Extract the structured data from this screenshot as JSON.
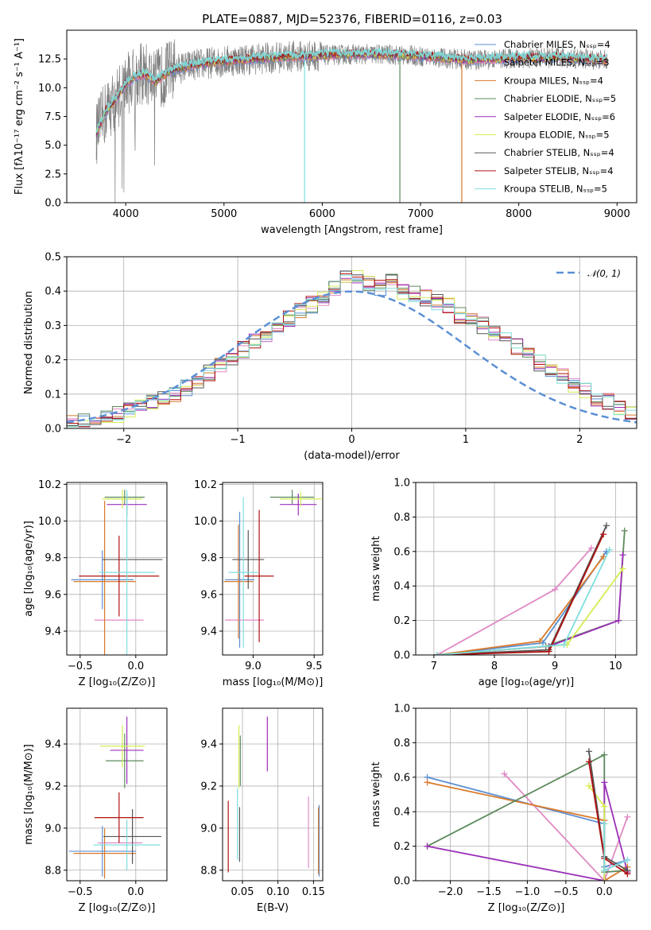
{
  "figure": {
    "title": "PLATE=0887, MJD=52376, FIBERID=0116, z=0.03"
  },
  "colors": [
    "#5b8fd4",
    "#e08ac4",
    "#d97a2a",
    "#5c8a5c",
    "#9b30b8",
    "#d4ec50",
    "#555555",
    "#b01010",
    "#7fdede"
  ],
  "chart_data": [
    {
      "type": "line",
      "panel": "spectrum",
      "xlabel": "wavelength [Angstrom, rest frame]",
      "ylabel": "Flux [fλ10⁻¹⁷ erg cm⁻² s⁻¹ A⁻¹]",
      "xlim": [
        3400,
        9200
      ],
      "ylim": [
        0,
        15
      ],
      "xticks": [
        "4000",
        "5000",
        "6000",
        "7000",
        "8000",
        "9000"
      ],
      "yticks": [
        "0.0",
        "2.5",
        "5.0",
        "7.5",
        "10.0",
        "12.5"
      ],
      "grid": false,
      "legend": "top-right",
      "legend_entries": [
        "Chabrier MILES, Nₛₛₚ=4",
        "Salpeter MILES, Nₛₛₚ=3",
        "Kroupa MILES, Nₛₛₚ=4",
        "Chabrier ELODIE, Nₛₛₚ=5",
        "Salpeter ELODIE, Nₛₛₚ=6",
        "Kroupa ELODIE, Nₛₛₚ=5",
        "Chabrier STELIB, Nₛₛₚ=4",
        "Salpeter STELIB, Nₛₛₚ=4",
        "Kroupa STELIB, Nₛₛₚ=5"
      ],
      "observed_envelope": {
        "x": [
          3700,
          3800,
          3900,
          4000,
          4100,
          4200,
          4300,
          4400,
          4500,
          4700,
          4900,
          5100,
          5300,
          5500,
          5700,
          6000,
          6300,
          6600,
          6900,
          7200,
          7500,
          7800,
          8100,
          8400,
          8700,
          8900
        ],
        "y": [
          6.0,
          8.0,
          9.0,
          10.3,
          11.0,
          11.2,
          10.5,
          11.2,
          11.6,
          12.0,
          12.2,
          12.4,
          12.5,
          12.6,
          12.7,
          12.8,
          12.9,
          12.9,
          12.8,
          12.6,
          12.4,
          12.5,
          12.6,
          12.6,
          12.5,
          12.4
        ]
      },
      "model_spikes": [
        {
          "x": 5820,
          "y": 0
        },
        {
          "x": 6790,
          "y": 0
        },
        {
          "x": 7420,
          "y": 0
        }
      ]
    },
    {
      "type": "step",
      "panel": "residual-histogram",
      "xlabel": "(data-model)/error",
      "ylabel": "Normed distribution",
      "xlim": [
        -2.5,
        2.5
      ],
      "ylim": [
        0,
        0.5
      ],
      "xticks": [
        "−2",
        "−1",
        "0",
        "1",
        "2"
      ],
      "yticks": [
        "0.0",
        "0.1",
        "0.2",
        "0.3",
        "0.4",
        "0.5"
      ],
      "grid": true,
      "legend": "top-right",
      "legend_entries": [
        "𝒩(0, 1)"
      ],
      "bin_width": 0.1,
      "bins_start": -2.5,
      "reference_curve": "normal(0,1)",
      "histogram_envelope": [
        0.02,
        0.02,
        0.03,
        0.03,
        0.04,
        0.05,
        0.06,
        0.08,
        0.09,
        0.1,
        0.12,
        0.14,
        0.16,
        0.18,
        0.2,
        0.23,
        0.25,
        0.27,
        0.29,
        0.32,
        0.34,
        0.36,
        0.38,
        0.41,
        0.45,
        0.44,
        0.42,
        0.41,
        0.43,
        0.4,
        0.39,
        0.38,
        0.37,
        0.36,
        0.33,
        0.32,
        0.3,
        0.28,
        0.26,
        0.24,
        0.21,
        0.19,
        0.17,
        0.15,
        0.13,
        0.11,
        0.09,
        0.08,
        0.06,
        0.05,
        0.04,
        0.03,
        0.03
      ]
    },
    {
      "type": "scatter",
      "panel": "age-vs-Z",
      "xlabel": "Z [log₁₀(Z/Z⊙)]",
      "ylabel": "age  [log₁₀(age/yr)]",
      "xlim": [
        -0.62,
        0.28
      ],
      "ylim": [
        9.27,
        10.21
      ],
      "xticks": [
        "−0.5",
        "0.0"
      ],
      "yticks": [
        "9.4",
        "9.6",
        "9.8",
        "10.0",
        "10.2"
      ],
      "grid": true,
      "points": [
        {
          "x": -0.3,
          "y": 9.68,
          "xerr": 0.28,
          "yerr": 0.16,
          "c": 0
        },
        {
          "x": -0.15,
          "y": 9.46,
          "xerr": 0.22,
          "yerr": 0.0,
          "c": 1
        },
        {
          "x": -0.28,
          "y": 9.67,
          "xerr": 0.28,
          "yerr": 0.44,
          "c": 2
        },
        {
          "x": -0.1,
          "y": 10.13,
          "xerr": 0.18,
          "yerr": 0.04,
          "c": 3
        },
        {
          "x": -0.08,
          "y": 10.09,
          "xerr": 0.18,
          "yerr": 0.06,
          "c": 4
        },
        {
          "x": -0.12,
          "y": 10.12,
          "xerr": 0.18,
          "yerr": 0.05,
          "c": 5
        },
        {
          "x": -0.03,
          "y": 9.79,
          "xerr": 0.27,
          "yerr": 0.0,
          "c": 6
        },
        {
          "x": -0.15,
          "y": 9.7,
          "xerr": 0.36,
          "yerr": 0.22,
          "c": 7
        },
        {
          "x": -0.08,
          "y": 9.72,
          "xerr": 0.25,
          "yerr": 0.45,
          "c": 8
        }
      ]
    },
    {
      "type": "scatter",
      "panel": "age-vs-mass",
      "xlabel": "mass [log₁₀(M/M⊙)]",
      "ylabel": "",
      "xlim": [
        8.75,
        9.57
      ],
      "ylim": [
        9.27,
        10.21
      ],
      "xticks": [
        "9.0",
        "9.5"
      ],
      "yticks": [
        "9.4",
        "9.6",
        "9.8",
        "10.0",
        "10.2"
      ],
      "grid": true,
      "points": [
        {
          "x": 8.89,
          "y": 9.68,
          "xerr": 0.12,
          "yerr": 0.37,
          "c": 0
        },
        {
          "x": 8.93,
          "y": 9.46,
          "xerr": 0.16,
          "yerr": 0.0,
          "c": 1
        },
        {
          "x": 8.88,
          "y": 9.67,
          "xerr": 0.12,
          "yerr": 0.31,
          "c": 2
        },
        {
          "x": 9.32,
          "y": 10.13,
          "xerr": 0.18,
          "yerr": 0.04,
          "c": 3
        },
        {
          "x": 9.37,
          "y": 10.09,
          "xerr": 0.15,
          "yerr": 0.06,
          "c": 4
        },
        {
          "x": 9.39,
          "y": 10.12,
          "xerr": 0.17,
          "yerr": 0.04,
          "c": 5
        },
        {
          "x": 8.96,
          "y": 9.79,
          "xerr": 0.13,
          "yerr": 0.16,
          "c": 6
        },
        {
          "x": 9.05,
          "y": 9.7,
          "xerr": 0.12,
          "yerr": 0.36,
          "c": 7
        },
        {
          "x": 8.92,
          "y": 9.72,
          "xerr": 0.12,
          "yerr": 0.41,
          "c": 8
        }
      ]
    },
    {
      "type": "line",
      "panel": "mass-weight-vs-age",
      "xlabel": "age  [log₁₀(age/yr)]",
      "ylabel": "mass weight",
      "xlim": [
        6.7,
        10.35
      ],
      "ylim": [
        0,
        1
      ],
      "xticks": [
        "7",
        "8",
        "9",
        "10"
      ],
      "yticks": [
        "0.0",
        "0.2",
        "0.4",
        "0.6",
        "0.8",
        "1.0"
      ],
      "grid": true,
      "series": [
        {
          "c": 0,
          "x": [
            7.05,
            8.8,
            9.85
          ],
          "y": [
            0.0,
            0.07,
            0.6
          ]
        },
        {
          "c": 1,
          "x": [
            7.05,
            9.0,
            9.6
          ],
          "y": [
            0.0,
            0.38,
            0.62
          ]
        },
        {
          "c": 2,
          "x": [
            7.05,
            8.75,
            9.8
          ],
          "y": [
            0.0,
            0.08,
            0.57
          ]
        },
        {
          "c": 3,
          "x": [
            7.05,
            8.85,
            10.05,
            10.15
          ],
          "y": [
            0.0,
            0.05,
            0.2,
            0.72
          ]
        },
        {
          "c": 4,
          "x": [
            7.05,
            8.9,
            10.05,
            10.12
          ],
          "y": [
            0.0,
            0.05,
            0.2,
            0.58
          ]
        },
        {
          "c": 5,
          "x": [
            7.05,
            9.2,
            10.12
          ],
          "y": [
            0.0,
            0.06,
            0.5
          ]
        },
        {
          "c": 6,
          "x": [
            7.05,
            8.9,
            9.85
          ],
          "y": [
            0.0,
            0.03,
            0.75
          ]
        },
        {
          "c": 7,
          "x": [
            7.05,
            8.9,
            9.8
          ],
          "y": [
            0.0,
            0.02,
            0.7
          ]
        },
        {
          "c": 8,
          "x": [
            7.05,
            9.15,
            9.9
          ],
          "y": [
            0.0,
            0.06,
            0.61
          ]
        }
      ]
    },
    {
      "type": "scatter",
      "panel": "mass-vs-Z",
      "xlabel": "Z [log₁₀(Z/Z⊙)]",
      "ylabel": "mass [log₁₀(M/M⊙)]",
      "xlim": [
        -0.62,
        0.28
      ],
      "ylim": [
        8.75,
        9.57
      ],
      "xticks": [
        "−0.5",
        "0.0"
      ],
      "yticks": [
        "8.8",
        "9.0",
        "9.2",
        "9.4"
      ],
      "grid": true,
      "points": [
        {
          "x": -0.3,
          "y": 8.89,
          "xerr": 0.3,
          "yerr": 0.12,
          "c": 0
        },
        {
          "x": -0.14,
          "y": 8.93,
          "xerr": 0.2,
          "yerr": 0.0,
          "c": 1
        },
        {
          "x": -0.28,
          "y": 8.88,
          "xerr": 0.28,
          "yerr": 0.12,
          "c": 2
        },
        {
          "x": -0.1,
          "y": 9.32,
          "xerr": 0.17,
          "yerr": 0.13,
          "c": 3
        },
        {
          "x": -0.08,
          "y": 9.37,
          "xerr": 0.15,
          "yerr": 0.16,
          "c": 4
        },
        {
          "x": -0.12,
          "y": 9.39,
          "xerr": 0.2,
          "yerr": 0.1,
          "c": 5
        },
        {
          "x": -0.03,
          "y": 8.96,
          "xerr": 0.26,
          "yerr": 0.13,
          "c": 6
        },
        {
          "x": -0.15,
          "y": 9.05,
          "xerr": 0.22,
          "yerr": 0.12,
          "c": 7
        },
        {
          "x": -0.08,
          "y": 8.92,
          "xerr": 0.3,
          "yerr": 0.12,
          "c": 8
        }
      ]
    },
    {
      "type": "scatter",
      "panel": "mass-vs-EBV",
      "xlabel": "E(B-V)",
      "ylabel": "",
      "xlim": [
        0.022,
        0.163
      ],
      "ylim": [
        8.75,
        9.57
      ],
      "xticks": [
        "0.05",
        "0.10",
        "0.15"
      ],
      "yticks": [
        "8.8",
        "9.0",
        "9.2",
        "9.4"
      ],
      "grid": true,
      "points": [
        {
          "x": 0.158,
          "y": 8.94,
          "xerr": 0,
          "yerr": 0.17,
          "c": 0
        },
        {
          "x": 0.143,
          "y": 8.98,
          "xerr": 0,
          "yerr": 0.17,
          "c": 1
        },
        {
          "x": 0.157,
          "y": 8.94,
          "xerr": 0,
          "yerr": 0.16,
          "c": 2
        },
        {
          "x": 0.047,
          "y": 9.32,
          "xerr": 0,
          "yerr": 0.12,
          "c": 3
        },
        {
          "x": 0.085,
          "y": 9.4,
          "xerr": 0,
          "yerr": 0.13,
          "c": 4
        },
        {
          "x": 0.045,
          "y": 9.34,
          "xerr": 0,
          "yerr": 0.15,
          "c": 5
        },
        {
          "x": 0.046,
          "y": 8.97,
          "xerr": 0,
          "yerr": 0.13,
          "c": 6
        },
        {
          "x": 0.03,
          "y": 8.96,
          "xerr": 0,
          "yerr": 0.17,
          "c": 7
        },
        {
          "x": 0.043,
          "y": 9.02,
          "xerr": 0,
          "yerr": 0.17,
          "c": 8
        }
      ]
    },
    {
      "type": "line",
      "panel": "mass-weight-vs-Z",
      "xlabel": "Z [log₁₀(Z/Z⊙)]",
      "ylabel": "mass weight",
      "xlim": [
        -2.45,
        0.42
      ],
      "ylim": [
        0,
        1
      ],
      "xticks": [
        "−2.0",
        "−1.5",
        "−1.0",
        "−0.5",
        "0.0"
      ],
      "yticks": [
        "0.0",
        "0.2",
        "0.4",
        "0.6",
        "0.8",
        "1.0"
      ],
      "grid": true,
      "series": [
        {
          "c": 0,
          "x": [
            -2.3,
            0.0,
            0.0,
            0.3
          ],
          "y": [
            0.6,
            0.33,
            0.08,
            0.12
          ]
        },
        {
          "c": 1,
          "x": [
            -1.3,
            0.0,
            0.3
          ],
          "y": [
            0.62,
            0.0,
            0.37
          ]
        },
        {
          "c": 2,
          "x": [
            -2.3,
            0.0,
            0.0,
            0.3
          ],
          "y": [
            0.57,
            0.35,
            0.0,
            0.08
          ]
        },
        {
          "c": 3,
          "x": [
            -2.3,
            0.0,
            0.0,
            0.3
          ],
          "y": [
            0.2,
            0.73,
            0.05,
            0.06
          ]
        },
        {
          "c": 4,
          "x": [
            -2.3,
            0.0,
            0.0,
            0.3
          ],
          "y": [
            0.2,
            0.0,
            0.57,
            0.05
          ]
        },
        {
          "c": 5,
          "x": [
            -0.2,
            0.0,
            0.0
          ],
          "y": [
            0.55,
            0.43,
            0.0
          ]
        },
        {
          "c": 6,
          "x": [
            -0.2,
            0.0,
            0.3
          ],
          "y": [
            0.75,
            0.14,
            0.06
          ]
        },
        {
          "c": 7,
          "x": [
            -0.2,
            0.0,
            0.3
          ],
          "y": [
            0.69,
            0.13,
            0.04
          ]
        },
        {
          "c": 8,
          "x": [
            0.0,
            0.0,
            0.3
          ],
          "y": [
            0.33,
            0.06,
            0.12
          ]
        }
      ]
    }
  ]
}
